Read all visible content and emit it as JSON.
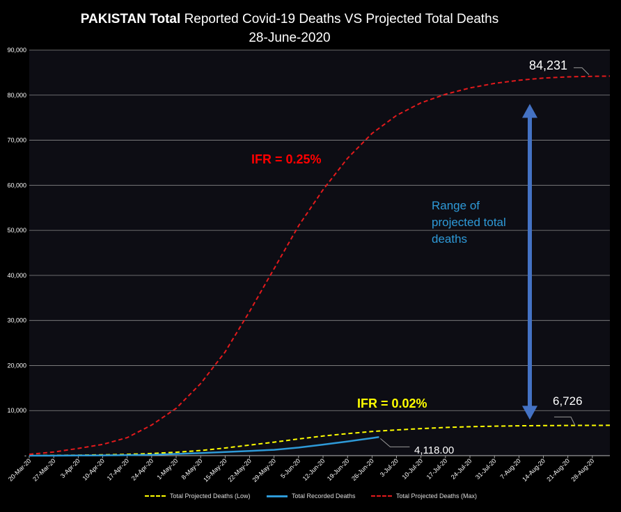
{
  "title": {
    "bold": "PAKISTAN Total",
    "rest": " Reported Covid-19 Deaths VS Projected Total Deaths",
    "date": "28-June-2020"
  },
  "chart_data": {
    "type": "line",
    "title": "PAKISTAN Total Reported Covid-19 Deaths VS Projected Total Deaths 28-June-2020",
    "ylim": [
      0,
      90000
    ],
    "yticks": [
      0,
      10000,
      20000,
      30000,
      40000,
      50000,
      60000,
      70000,
      80000,
      90000
    ],
    "ytick_labels": [
      "-",
      "10,000",
      "20,000",
      "30,000",
      "40,000",
      "50,000",
      "60,000",
      "70,000",
      "80,000",
      "90,000"
    ],
    "x_start": "2020-03-20",
    "x_end": "2020-09-02",
    "x_tick_labels": [
      "20-Mar-20",
      "27-Mar-20",
      "3-Apr-20",
      "10-Apr-20",
      "17-Apr-20",
      "24-Apr-20",
      "1-May-20",
      "8-May-20",
      "15-May-20",
      "22-May-20",
      "29-May-20",
      "5-Jun-20",
      "12-Jun-20",
      "19-Jun-20",
      "26-Jun-20",
      "3-Jul-20",
      "10-Jul-20",
      "17-Jul-20",
      "24-Jul-20",
      "31-Jul-20",
      "7-Aug-20",
      "14-Aug-20",
      "21-Aug-20",
      "28-Aug-20"
    ],
    "grid": true,
    "legend_position": "bottom",
    "series": [
      {
        "name": "Total Projected Deaths (Low)",
        "color": "#ffff00",
        "style": "dashed",
        "x": [
          "2020-03-20",
          "2020-03-27",
          "2020-04-03",
          "2020-04-10",
          "2020-04-17",
          "2020-04-24",
          "2020-05-01",
          "2020-05-08",
          "2020-05-15",
          "2020-05-22",
          "2020-05-29",
          "2020-06-05",
          "2020-06-12",
          "2020-06-19",
          "2020-06-26",
          "2020-07-03",
          "2020-07-10",
          "2020-07-17",
          "2020-07-24",
          "2020-07-31",
          "2020-08-07",
          "2020-08-14",
          "2020-08-21",
          "2020-08-28",
          "2020-09-02"
        ],
        "y": [
          30,
          60,
          110,
          180,
          300,
          480,
          750,
          1150,
          1700,
          2350,
          3000,
          3700,
          4350,
          4900,
          5350,
          5700,
          6000,
          6250,
          6420,
          6540,
          6620,
          6670,
          6700,
          6715,
          6726
        ]
      },
      {
        "name": "Total Recorded Deaths",
        "color": "#2e9ad8",
        "style": "solid",
        "x": [
          "2020-03-20",
          "2020-03-27",
          "2020-04-03",
          "2020-04-10",
          "2020-04-17",
          "2020-04-24",
          "2020-05-01",
          "2020-05-08",
          "2020-05-15",
          "2020-05-22",
          "2020-05-29",
          "2020-06-05",
          "2020-06-12",
          "2020-06-19",
          "2020-06-26",
          "2020-06-28"
        ],
        "y": [
          0,
          5,
          30,
          60,
          120,
          200,
          380,
          580,
          800,
          1050,
          1290,
          1790,
          2460,
          3150,
          3900,
          4118
        ]
      },
      {
        "name": "Total Projected Deaths (Max)",
        "color": "#e31a1c",
        "style": "dashed",
        "x": [
          "2020-03-20",
          "2020-03-27",
          "2020-04-03",
          "2020-04-10",
          "2020-04-17",
          "2020-04-24",
          "2020-05-01",
          "2020-05-08",
          "2020-05-15",
          "2020-05-22",
          "2020-05-29",
          "2020-06-05",
          "2020-06-12",
          "2020-06-19",
          "2020-06-26",
          "2020-07-03",
          "2020-07-10",
          "2020-07-17",
          "2020-07-24",
          "2020-07-31",
          "2020-08-07",
          "2020-08-14",
          "2020-08-21",
          "2020-08-28",
          "2020-09-02"
        ],
        "y": [
          300,
          800,
          1600,
          2500,
          4000,
          6800,
          10500,
          16000,
          23000,
          32000,
          41500,
          51000,
          59000,
          66000,
          71500,
          75500,
          78300,
          80200,
          81600,
          82600,
          83300,
          83800,
          84050,
          84180,
          84231
        ]
      }
    ],
    "annotations": {
      "max_label": "84,231",
      "low_label": "6,726",
      "recorded_label": "4,118.00",
      "ifr_high": "IFR = 0.25%",
      "ifr_low": "IFR = 0.02%",
      "range_text": [
        "Range of",
        "projected total",
        "deaths"
      ]
    }
  }
}
